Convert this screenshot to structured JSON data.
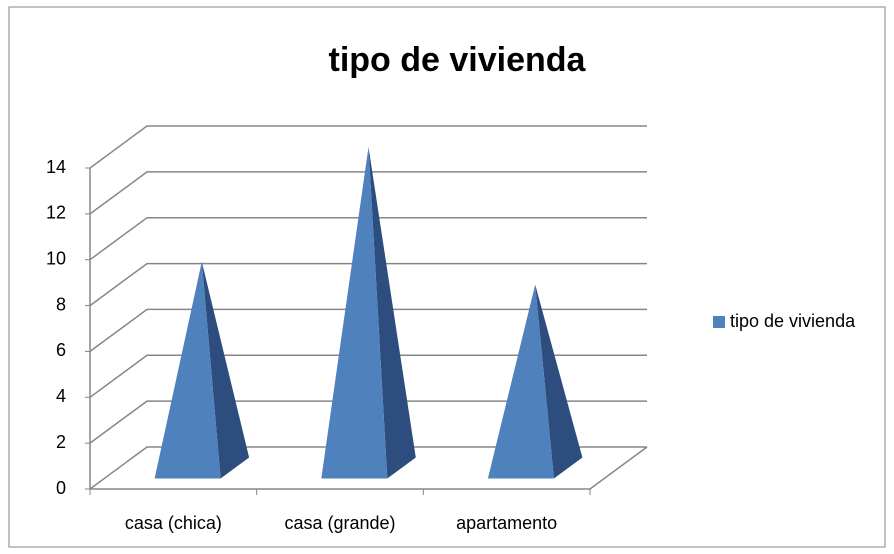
{
  "chart_data": {
    "type": "pyramid3d",
    "title": "tipo de vivienda",
    "categories": [
      "casa (chica)",
      "casa (grande)",
      "apartamento"
    ],
    "series": [
      {
        "name": "tipo de vivienda",
        "color": "#4f81bd",
        "values": [
          9,
          14,
          8
        ]
      }
    ],
    "ylim": [
      0,
      14
    ],
    "yticks": [
      0,
      2,
      4,
      6,
      8,
      10,
      12,
      14
    ],
    "grid": true,
    "legend": "right"
  }
}
